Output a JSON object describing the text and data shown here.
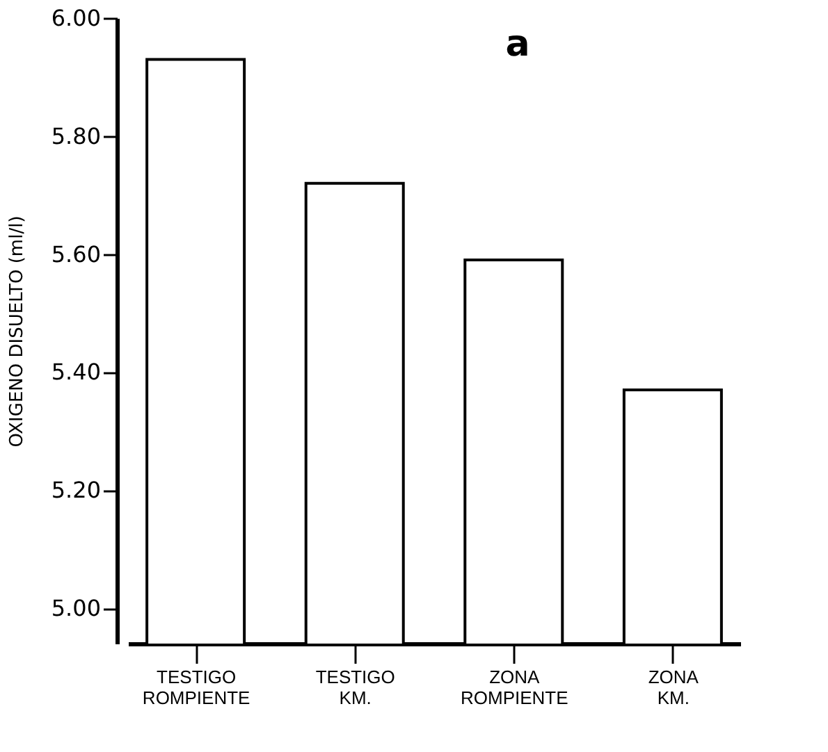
{
  "chart_data": {
    "type": "bar",
    "title": "a",
    "ylabel": "OXIGENO DISUELTO (ml/l)",
    "categories": [
      "TESTIGO ROMPIENTE",
      "TESTIGO KM.",
      "ZONA ROMPIENTE",
      "ZONA KM."
    ],
    "values": [
      5.93,
      5.72,
      5.59,
      5.37
    ],
    "color": "#ffffff",
    "ylim": [
      4.94,
      6.0
    ],
    "yticks": [
      {
        "value": 5.0,
        "label": "5.00"
      },
      {
        "value": 5.2,
        "label": "5.20"
      },
      {
        "value": 5.4,
        "label": "5.40"
      },
      {
        "value": 5.6,
        "label": "5.60"
      },
      {
        "value": 5.8,
        "label": "5.80"
      },
      {
        "value": 6.0,
        "label": "6.00"
      }
    ],
    "grid": false
  }
}
